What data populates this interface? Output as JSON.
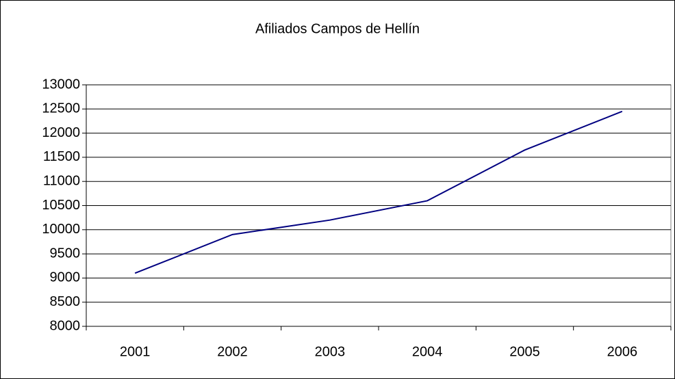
{
  "chart_data": {
    "type": "line",
    "title": "Afiliados Campos de Hellín",
    "categories": [
      "2001",
      "2002",
      "2003",
      "2004",
      "2005",
      "2006"
    ],
    "series": [
      {
        "name": "Afiliados",
        "color": "#000080",
        "values": [
          9100,
          9900,
          10200,
          10600,
          11650,
          12450
        ]
      }
    ],
    "ylim": [
      8000,
      13000
    ],
    "yticks": [
      8000,
      8500,
      9000,
      9500,
      10000,
      10500,
      11000,
      11500,
      12000,
      12500,
      13000
    ],
    "grid": true,
    "legend": false
  }
}
